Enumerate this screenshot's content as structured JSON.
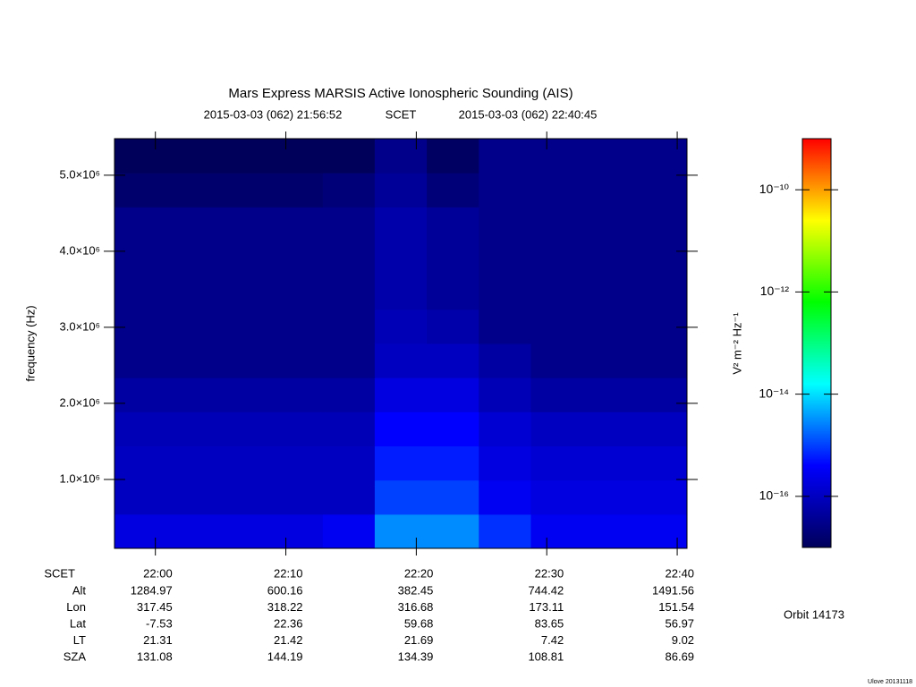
{
  "chart_data": {
    "type": "spectrogram",
    "title": "Mars Express MARSIS Active Ionospheric Sounding (AIS)",
    "start": "2015-03-03 (062) 21:56:52",
    "time_label": "SCET",
    "end": "2015-03-03 (062) 22:40:45",
    "ylabel": "frequency (Hz)",
    "ylim": [
      94000,
      5480000
    ],
    "yticks": [
      {
        "value": 1000000,
        "label": "1.0×10⁶"
      },
      {
        "value": 2000000,
        "label": "2.0×10⁶"
      },
      {
        "value": 3000000,
        "label": "3.0×10⁶"
      },
      {
        "value": 4000000,
        "label": "4.0×10⁶"
      },
      {
        "value": 5000000,
        "label": "5.0×10⁶"
      }
    ],
    "xticks": [
      "22:00",
      "22:10",
      "22:20",
      "22:30",
      "22:40"
    ],
    "colorbar_label": "V² m⁻² Hz⁻¹",
    "zlim": [
      1e-17,
      1e-09
    ],
    "zlog": true,
    "zticks": [
      {
        "value": 1e-16,
        "label": "10⁻¹⁶"
      },
      {
        "value": 1e-14,
        "label": "10⁻¹⁴"
      },
      {
        "value": 1e-12,
        "label": "10⁻¹²"
      },
      {
        "value": 1e-10,
        "label": "10⁻¹⁰"
      }
    ],
    "colormap": [
      "#00005a",
      "#0000ff",
      "#00ffff",
      "#00ff00",
      "#ffff00",
      "#ff0000"
    ],
    "z": [
      [
        2e-16,
        2e-16,
        2e-16,
        2e-16,
        3e-16,
        3e-15,
        3e-15,
        8e-16,
        3e-16,
        3e-16,
        3e-16
      ],
      [
        1e-16,
        1e-16,
        1e-16,
        1e-16,
        1e-16,
        1e-15,
        1e-15,
        3e-16,
        2e-16,
        2e-16,
        2e-16
      ],
      [
        1e-16,
        1e-16,
        1e-16,
        1e-16,
        1e-16,
        6e-16,
        6e-16,
        2e-16,
        1.5e-16,
        1.5e-16,
        1.5e-16
      ],
      [
        8e-17,
        8e-17,
        8e-17,
        8e-17,
        8e-17,
        4e-16,
        4e-16,
        1.5e-16,
        1e-16,
        1e-16,
        1e-16
      ],
      [
        5e-17,
        5e-17,
        5e-17,
        5e-17,
        5e-17,
        2e-16,
        2e-16,
        8e-17,
        5e-17,
        5e-17,
        5e-17
      ],
      [
        3e-17,
        3e-17,
        3e-17,
        3e-17,
        3e-17,
        1e-16,
        1e-16,
        5e-17,
        3e-17,
        3e-17,
        3e-17
      ],
      [
        3e-17,
        3e-17,
        3e-17,
        3e-17,
        3e-17,
        8e-17,
        6e-17,
        3e-17,
        3e-17,
        3e-17,
        3e-17
      ],
      [
        3e-17,
        3e-17,
        3e-17,
        3e-17,
        3e-17,
        6e-17,
        4e-17,
        3e-17,
        3e-17,
        3e-17,
        3e-17
      ],
      [
        3e-17,
        3e-17,
        3e-17,
        3e-17,
        3e-17,
        6e-17,
        4e-17,
        3e-17,
        3e-17,
        3e-17,
        3e-17
      ],
      [
        3e-17,
        3e-17,
        3e-17,
        3e-17,
        3e-17,
        6e-17,
        4e-17,
        3e-17,
        3e-17,
        3e-17,
        3e-17
      ],
      [
        1.5e-17,
        1.5e-17,
        1.5e-17,
        1.5e-17,
        2e-17,
        4e-17,
        2e-17,
        3e-17,
        3e-17,
        3e-17,
        3e-17
      ],
      [
        1e-17,
        1e-17,
        1e-17,
        1e-17,
        1e-17,
        3e-17,
        1.2e-17,
        3e-17,
        3e-17,
        3e-17,
        3e-17
      ]
    ],
    "ephemeris": [
      {
        "label": "Alt",
        "values": [
          1284.97,
          600.16,
          382.45,
          744.42,
          1491.56
        ]
      },
      {
        "label": "Lon",
        "values": [
          317.45,
          318.22,
          316.68,
          173.11,
          151.54
        ]
      },
      {
        "label": "Lat",
        "values": [
          -7.53,
          22.36,
          59.68,
          83.65,
          56.97
        ]
      },
      {
        "label": "LT",
        "values": [
          21.31,
          21.42,
          21.69,
          7.42,
          9.02
        ]
      },
      {
        "label": "SZA",
        "values": [
          131.08,
          144.19,
          134.39,
          108.81,
          86.69
        ]
      }
    ],
    "orbit": "Orbit 14173",
    "footer": "Ulove 20131118"
  }
}
